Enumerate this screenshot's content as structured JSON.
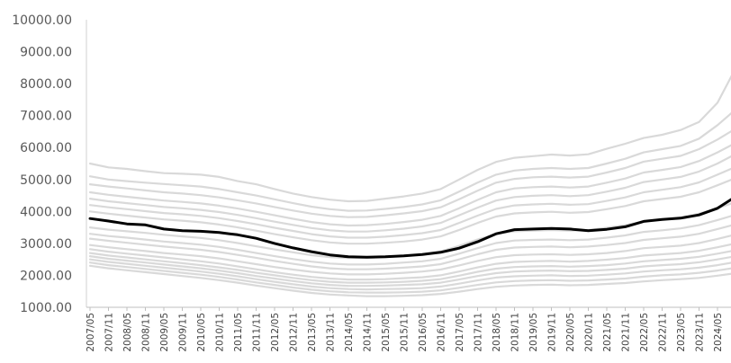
{
  "chart_data": {
    "type": "line",
    "title": "",
    "xlabel": "",
    "ylabel": "",
    "ylim": [
      1000,
      10000
    ],
    "y_ticks": [
      "10000.00",
      "9000.00",
      "8000.00",
      "7000.00",
      "6000.00",
      "5000.00",
      "4000.00",
      "3000.00",
      "2000.00",
      "1000.00"
    ],
    "x_ticks": [
      "2007/05",
      "2007/11",
      "2008/05",
      "2008/11",
      "2009/05",
      "2009/11",
      "2010/05",
      "2010/11",
      "2011/05",
      "2011/11",
      "2012/05",
      "2012/11",
      "2013/05",
      "2013/11",
      "2014/05",
      "2014/11",
      "2015/05",
      "2015/11",
      "2016/05",
      "2016/11",
      "2017/05",
      "2017/11",
      "2018/05",
      "2018/11",
      "2019/05",
      "2019/11",
      "2020/05",
      "2020/11",
      "2021/05",
      "2021/11",
      "2022/05",
      "2022/11",
      "2023/05",
      "2023/11",
      "2024/05",
      "2024/11"
    ],
    "grid": false,
    "legend": "none",
    "colors": {
      "highlight": "#000000",
      "background_series": "#d9d9d9"
    },
    "highlight_series": {
      "values": [
        3780,
        3700,
        3610,
        3580,
        3450,
        3400,
        3380,
        3340,
        3270,
        3160,
        3000,
        2860,
        2740,
        2640,
        2580,
        2570,
        2580,
        2610,
        2650,
        2720,
        2850,
        3050,
        3300,
        3430,
        3450,
        3470,
        3450,
        3400,
        3440,
        3520,
        3690,
        3750,
        3790,
        3890,
        4100,
        4470
      ]
    },
    "series": [
      {
        "values": [
          5500,
          5380,
          5330,
          5260,
          5200,
          5180,
          5150,
          5080,
          4950,
          4850,
          4700,
          4560,
          4450,
          4370,
          4320,
          4330,
          4400,
          4470,
          4560,
          4700,
          5000,
          5300,
          5550,
          5680,
          5730,
          5780,
          5750,
          5790,
          5960,
          6120,
          6300,
          6400,
          6550,
          6800,
          7400,
          8500
        ]
      },
      {
        "values": [
          5100,
          5000,
          4950,
          4900,
          4860,
          4820,
          4780,
          4700,
          4600,
          4500,
          4380,
          4260,
          4150,
          4070,
          4020,
          4030,
          4080,
          4140,
          4220,
          4350,
          4620,
          4900,
          5150,
          5280,
          5330,
          5360,
          5330,
          5360,
          5500,
          5650,
          5850,
          5950,
          6050,
          6280,
          6700,
          7200
        ]
      },
      {
        "values": [
          4850,
          4780,
          4720,
          4660,
          4600,
          4560,
          4510,
          4440,
          4350,
          4250,
          4140,
          4030,
          3930,
          3860,
          3820,
          3830,
          3880,
          3940,
          4010,
          4130,
          4380,
          4650,
          4900,
          5020,
          5070,
          5090,
          5060,
          5090,
          5220,
          5360,
          5560,
          5650,
          5740,
          5950,
          6250,
          6600
        ]
      },
      {
        "values": [
          4600,
          4520,
          4460,
          4400,
          4340,
          4300,
          4250,
          4180,
          4090,
          3990,
          3880,
          3770,
          3670,
          3600,
          3560,
          3570,
          3610,
          3670,
          3740,
          3860,
          4100,
          4360,
          4600,
          4720,
          4760,
          4780,
          4750,
          4780,
          4900,
          5030,
          5220,
          5300,
          5390,
          5580,
          5850,
          6150
        ]
      },
      {
        "values": [
          4400,
          4320,
          4260,
          4200,
          4140,
          4100,
          4050,
          3980,
          3890,
          3790,
          3680,
          3580,
          3480,
          3410,
          3370,
          3370,
          3410,
          3460,
          3530,
          3640,
          3880,
          4120,
          4340,
          4450,
          4490,
          4510,
          4480,
          4510,
          4620,
          4740,
          4920,
          5000,
          5080,
          5250,
          5500,
          5800
        ]
      },
      {
        "values": [
          4200,
          4130,
          4070,
          4010,
          3950,
          3910,
          3860,
          3790,
          3700,
          3600,
          3490,
          3390,
          3290,
          3220,
          3180,
          3180,
          3210,
          3260,
          3320,
          3420,
          3640,
          3870,
          4080,
          4190,
          4220,
          4240,
          4210,
          4230,
          4330,
          4440,
          4600,
          4680,
          4760,
          4910,
          5150,
          5400
        ]
      },
      {
        "values": [
          4000,
          3930,
          3870,
          3810,
          3750,
          3710,
          3660,
          3590,
          3500,
          3400,
          3290,
          3190,
          3100,
          3030,
          2990,
          2990,
          3020,
          3060,
          3120,
          3220,
          3420,
          3640,
          3840,
          3940,
          3970,
          3990,
          3960,
          3980,
          4070,
          4170,
          4320,
          4390,
          4460,
          4600,
          4820,
          5050
        ]
      },
      {
        "values": [
          3500,
          3430,
          3380,
          3330,
          3270,
          3220,
          3170,
          3100,
          3010,
          2910,
          2810,
          2720,
          2630,
          2570,
          2540,
          2540,
          2570,
          2610,
          2660,
          2750,
          2920,
          3120,
          3290,
          3380,
          3400,
          3420,
          3400,
          3420,
          3490,
          3570,
          3690,
          3750,
          3810,
          3930,
          4100,
          4300
        ]
      },
      {
        "values": [
          3300,
          3230,
          3180,
          3120,
          3060,
          3010,
          2960,
          2890,
          2800,
          2700,
          2600,
          2510,
          2430,
          2370,
          2340,
          2340,
          2360,
          2400,
          2440,
          2520,
          2680,
          2850,
          3010,
          3090,
          3110,
          3120,
          3100,
          3120,
          3180,
          3250,
          3360,
          3410,
          3470,
          3570,
          3730,
          3900
        ]
      },
      {
        "values": [
          3150,
          3080,
          3020,
          2960,
          2900,
          2850,
          2800,
          2730,
          2640,
          2550,
          2450,
          2360,
          2280,
          2220,
          2190,
          2190,
          2210,
          2240,
          2280,
          2350,
          2500,
          2660,
          2800,
          2870,
          2890,
          2900,
          2880,
          2900,
          2950,
          3010,
          3110,
          3160,
          3210,
          3300,
          3450,
          3600
        ]
      },
      {
        "values": [
          2950,
          2880,
          2820,
          2760,
          2700,
          2650,
          2600,
          2530,
          2440,
          2350,
          2260,
          2180,
          2110,
          2060,
          2030,
          2030,
          2050,
          2080,
          2120,
          2180,
          2310,
          2450,
          2570,
          2630,
          2650,
          2660,
          2640,
          2660,
          2700,
          2760,
          2850,
          2890,
          2930,
          3010,
          3140,
          3280
        ]
      },
      {
        "values": [
          2820,
          2740,
          2680,
          2620,
          2560,
          2500,
          2440,
          2370,
          2280,
          2190,
          2100,
          2020,
          1950,
          1900,
          1870,
          1870,
          1880,
          1910,
          1940,
          2000,
          2120,
          2250,
          2360,
          2420,
          2440,
          2450,
          2430,
          2450,
          2490,
          2540,
          2620,
          2660,
          2700,
          2770,
          2880,
          3000
        ]
      },
      {
        "values": [
          2700,
          2620,
          2560,
          2500,
          2440,
          2380,
          2320,
          2250,
          2170,
          2080,
          2000,
          1920,
          1850,
          1800,
          1770,
          1770,
          1780,
          1800,
          1830,
          1880,
          1990,
          2110,
          2210,
          2260,
          2280,
          2290,
          2270,
          2290,
          2320,
          2370,
          2440,
          2480,
          2520,
          2580,
          2680,
          2790
        ]
      },
      {
        "values": [
          2600,
          2520,
          2460,
          2400,
          2340,
          2280,
          2220,
          2150,
          2070,
          1980,
          1900,
          1820,
          1750,
          1700,
          1670,
          1670,
          1680,
          1700,
          1720,
          1770,
          1870,
          1980,
          2070,
          2120,
          2140,
          2150,
          2130,
          2140,
          2170,
          2210,
          2280,
          2320,
          2350,
          2410,
          2500,
          2600
        ]
      },
      {
        "values": [
          2500,
          2420,
          2360,
          2300,
          2240,
          2180,
          2120,
          2050,
          1970,
          1880,
          1800,
          1720,
          1650,
          1600,
          1570,
          1560,
          1570,
          1580,
          1600,
          1650,
          1740,
          1840,
          1930,
          1970,
          1990,
          2000,
          1980,
          1990,
          2020,
          2060,
          2120,
          2160,
          2190,
          2240,
          2320,
          2420
        ]
      },
      {
        "values": [
          2400,
          2320,
          2260,
          2200,
          2140,
          2080,
          2020,
          1950,
          1870,
          1780,
          1700,
          1620,
          1550,
          1500,
          1470,
          1460,
          1460,
          1470,
          1490,
          1530,
          1610,
          1700,
          1780,
          1820,
          1840,
          1850,
          1830,
          1840,
          1870,
          1900,
          1960,
          2000,
          2030,
          2080,
          2150,
          2240
        ]
      },
      {
        "values": [
          2300,
          2220,
          2160,
          2100,
          2040,
          1980,
          1920,
          1850,
          1770,
          1680,
          1600,
          1520,
          1450,
          1400,
          1370,
          1350,
          1350,
          1360,
          1380,
          1420,
          1490,
          1570,
          1640,
          1680,
          1700,
          1710,
          1690,
          1700,
          1730,
          1760,
          1810,
          1850,
          1880,
          1920,
          1990,
          2070
        ]
      }
    ]
  }
}
